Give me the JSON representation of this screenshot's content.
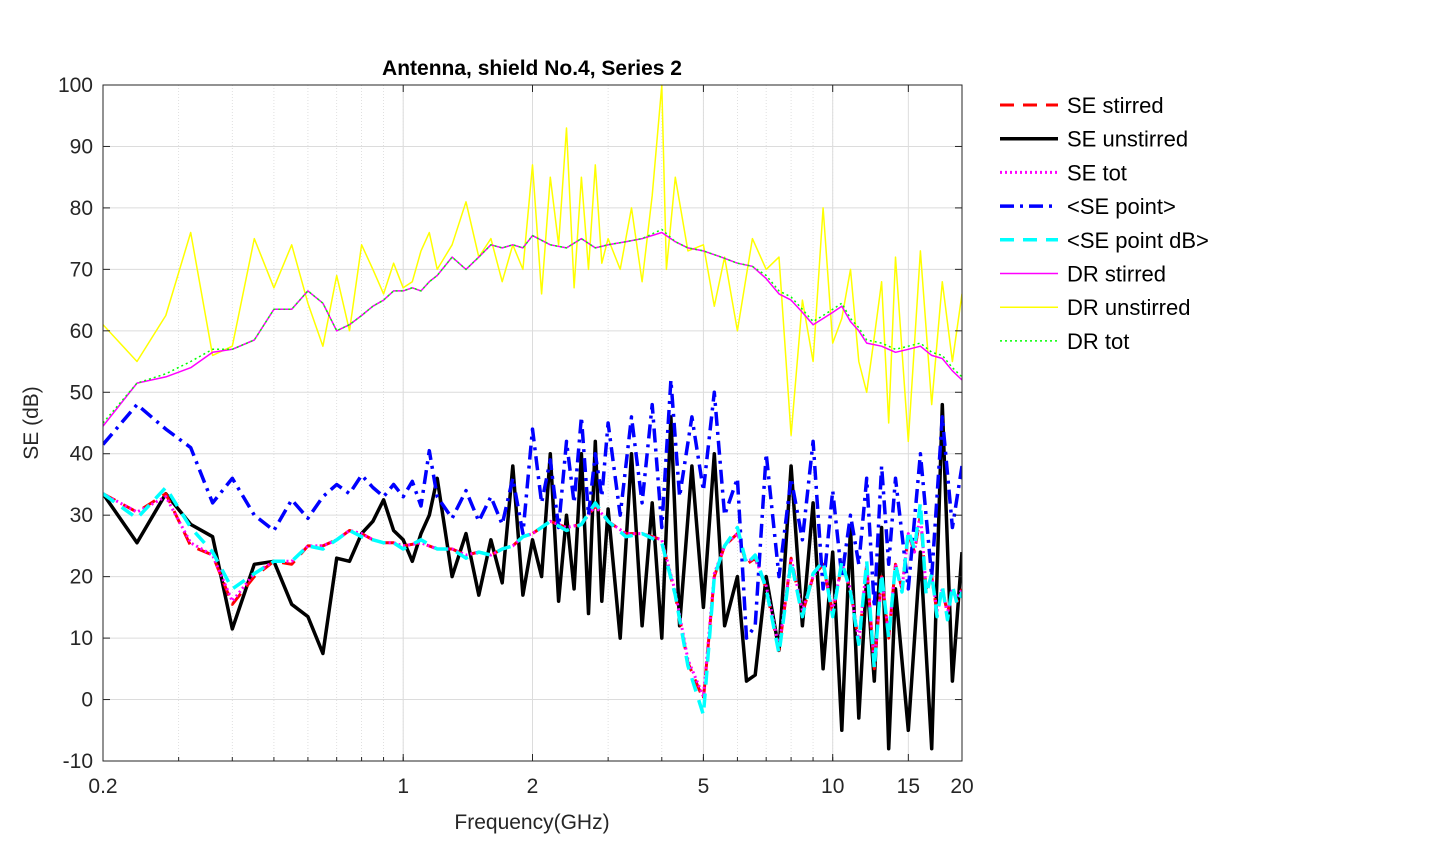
{
  "chart_data": {
    "type": "line",
    "title": "Antenna, shield No.4, Series 2",
    "xlabel": "Frequency(GHz)",
    "ylabel": "SE (dB)",
    "xscale": "log",
    "xlim": [
      0.2,
      20
    ],
    "ylim": [
      -10,
      100
    ],
    "xticks": [
      0.2,
      1,
      2,
      5,
      10,
      15,
      20
    ],
    "xtick_labels": [
      "0.2",
      "1",
      "2",
      "5",
      "10",
      "15",
      "20"
    ],
    "yticks": [
      -10,
      0,
      10,
      20,
      30,
      40,
      50,
      60,
      70,
      80,
      90,
      100
    ],
    "ytick_labels": [
      "-10",
      "0",
      "10",
      "20",
      "30",
      "40",
      "50",
      "60",
      "70",
      "80",
      "90",
      "100"
    ],
    "grid": true,
    "minor_grid_x": true,
    "legend_position": "outside-right",
    "series": [
      {
        "name": "DR unstirred",
        "color": "#FFFF00",
        "style": "solid",
        "width": 1.5,
        "x": [
          0.2,
          0.24,
          0.28,
          0.32,
          0.36,
          0.4,
          0.45,
          0.5,
          0.55,
          0.6,
          0.65,
          0.7,
          0.75,
          0.8,
          0.85,
          0.9,
          0.95,
          1.0,
          1.05,
          1.1,
          1.15,
          1.2,
          1.3,
          1.4,
          1.5,
          1.6,
          1.7,
          1.8,
          1.9,
          2.0,
          2.1,
          2.2,
          2.3,
          2.4,
          2.5,
          2.6,
          2.7,
          2.8,
          2.9,
          3.0,
          3.2,
          3.4,
          3.6,
          3.8,
          4.0,
          4.1,
          4.3,
          4.6,
          5.0,
          5.3,
          5.6,
          6.0,
          6.5,
          7.0,
          7.5,
          8.0,
          8.5,
          9.0,
          9.5,
          10.0,
          10.5,
          11.0,
          11.5,
          12.0,
          12.5,
          13.0,
          13.5,
          14.0,
          15.0,
          16.0,
          17.0,
          18.0,
          19.0,
          20.0
        ],
        "y": [
          61,
          55,
          62.5,
          76,
          56,
          57.5,
          75,
          67,
          74,
          64.5,
          57.5,
          69,
          60,
          74,
          70,
          66,
          71,
          67,
          68,
          73,
          76,
          70,
          74,
          81,
          72,
          75,
          68,
          74,
          70,
          87,
          66,
          85,
          74,
          93,
          67,
          85,
          70,
          87,
          71,
          75,
          70,
          80,
          68,
          82,
          100,
          70,
          85,
          73,
          74,
          64,
          72,
          60,
          75,
          70,
          72,
          43,
          65,
          55,
          80,
          58,
          62,
          70,
          55,
          50,
          59,
          68,
          45,
          72,
          42,
          73,
          48,
          68,
          55,
          66
        ]
      },
      {
        "name": "DR stirred",
        "color": "#FF00FF",
        "style": "solid",
        "width": 1.5,
        "x": [
          0.2,
          0.24,
          0.28,
          0.32,
          0.36,
          0.4,
          0.45,
          0.5,
          0.55,
          0.6,
          0.65,
          0.7,
          0.75,
          0.8,
          0.85,
          0.9,
          0.95,
          1.0,
          1.05,
          1.1,
          1.15,
          1.2,
          1.3,
          1.4,
          1.5,
          1.6,
          1.7,
          1.8,
          1.9,
          2.0,
          2.2,
          2.4,
          2.6,
          2.8,
          3.0,
          3.3,
          3.6,
          4.0,
          4.3,
          4.6,
          5.0,
          5.5,
          6.0,
          6.5,
          7.0,
          7.5,
          8.0,
          8.5,
          9.0,
          9.5,
          10.0,
          10.5,
          11.0,
          11.5,
          12.0,
          13.0,
          14.0,
          15.0,
          16.0,
          17.0,
          18.0,
          19.0,
          20.0
        ],
        "y": [
          44.5,
          51.5,
          52.5,
          54,
          56.5,
          57,
          58.5,
          63.5,
          63.5,
          66.5,
          64.5,
          60,
          61,
          62.5,
          64,
          65,
          66.5,
          66.5,
          67,
          66.5,
          68,
          69,
          72,
          70,
          72,
          74,
          73.5,
          74,
          73.5,
          75.5,
          74,
          73.5,
          75,
          73.5,
          74,
          74.5,
          75,
          76,
          74.5,
          73.5,
          73,
          72,
          71,
          70.5,
          68.5,
          66,
          65,
          63,
          61,
          62,
          63,
          64,
          61.5,
          60,
          58,
          57.5,
          56.5,
          57,
          57.5,
          56,
          55.5,
          53.5,
          52
        ]
      },
      {
        "name": "DR tot",
        "color": "#00FF00",
        "style": "dotted",
        "width": 1.5,
        "x": [
          0.2,
          0.24,
          0.28,
          0.32,
          0.36,
          0.4,
          0.45,
          0.5,
          0.55,
          0.6,
          0.65,
          0.7,
          0.75,
          0.8,
          0.85,
          0.9,
          0.95,
          1.0,
          1.05,
          1.1,
          1.15,
          1.2,
          1.3,
          1.4,
          1.5,
          1.6,
          1.7,
          1.8,
          1.9,
          2.0,
          2.2,
          2.4,
          2.6,
          2.8,
          3.0,
          3.3,
          3.6,
          4.0,
          4.3,
          4.6,
          5.0,
          5.5,
          6.0,
          6.5,
          7.0,
          7.5,
          8.0,
          8.5,
          9.0,
          9.5,
          10.0,
          10.5,
          11.0,
          11.5,
          12.0,
          13.0,
          14.0,
          15.0,
          16.0,
          17.0,
          18.0,
          19.0,
          20.0
        ],
        "y": [
          45,
          51.5,
          53,
          55,
          57,
          57,
          58.5,
          63.5,
          63.5,
          66.5,
          64.5,
          60,
          61,
          62.5,
          64,
          65,
          66.5,
          66.5,
          67,
          66.5,
          68,
          69,
          72,
          70,
          72,
          74,
          73.5,
          74,
          73.5,
          75.5,
          74,
          73.5,
          75,
          73.5,
          74,
          74.5,
          75,
          76.5,
          74.5,
          73.5,
          73,
          72,
          71,
          70.5,
          69,
          66.5,
          65.5,
          63.5,
          61.5,
          62.5,
          63.5,
          64.5,
          62,
          60.5,
          58.5,
          58,
          57,
          57.5,
          58,
          56.5,
          56,
          54,
          52.5
        ]
      },
      {
        "name": "SE unstirred",
        "color": "#000000",
        "style": "solid",
        "width": 3.5,
        "x": [
          0.2,
          0.24,
          0.28,
          0.32,
          0.36,
          0.4,
          0.45,
          0.5,
          0.55,
          0.6,
          0.65,
          0.7,
          0.75,
          0.8,
          0.85,
          0.9,
          0.95,
          1.0,
          1.05,
          1.1,
          1.15,
          1.2,
          1.3,
          1.4,
          1.5,
          1.6,
          1.7,
          1.8,
          1.9,
          2.0,
          2.1,
          2.2,
          2.3,
          2.4,
          2.5,
          2.6,
          2.7,
          2.8,
          2.9,
          3.0,
          3.2,
          3.4,
          3.6,
          3.8,
          4.0,
          4.2,
          4.4,
          4.7,
          5.0,
          5.3,
          5.6,
          6.0,
          6.3,
          6.6,
          7.0,
          7.5,
          8.0,
          8.5,
          9.0,
          9.5,
          10.0,
          10.5,
          11.0,
          11.5,
          12.0,
          12.5,
          13.0,
          13.5,
          14.0,
          15.0,
          16.0,
          17.0,
          18.0,
          19.0,
          20.0
        ],
        "y": [
          33.5,
          25.5,
          33.5,
          28.5,
          26.5,
          11.5,
          22,
          22.5,
          15.5,
          13.5,
          7.5,
          23,
          22.5,
          27,
          29,
          32.5,
          27.5,
          26,
          22.5,
          27,
          30,
          36,
          20,
          27,
          17,
          26,
          19,
          38,
          17,
          26,
          20,
          40,
          16,
          30,
          18,
          40,
          14,
          42,
          16,
          31,
          10,
          40,
          12,
          32,
          10,
          46,
          12,
          38,
          15,
          40,
          12,
          20,
          3,
          4,
          20,
          8,
          38,
          12,
          32,
          5,
          24,
          -5,
          28,
          -3,
          20,
          3,
          28,
          -8,
          18,
          -5,
          24,
          -8,
          48,
          3,
          24
        ]
      },
      {
        "name": "SE stirred",
        "color": "#FF0000",
        "style": "dashed",
        "width": 3,
        "x": [
          0.2,
          0.24,
          0.28,
          0.32,
          0.36,
          0.4,
          0.45,
          0.5,
          0.55,
          0.6,
          0.65,
          0.7,
          0.75,
          0.8,
          0.85,
          0.9,
          0.95,
          1.0,
          1.1,
          1.2,
          1.3,
          1.4,
          1.5,
          1.6,
          1.7,
          1.8,
          1.9,
          2.0,
          2.2,
          2.4,
          2.6,
          2.8,
          3.0,
          3.3,
          3.6,
          4.0,
          4.3,
          4.6,
          5.0,
          5.3,
          5.6,
          6.0,
          6.3,
          6.6,
          7.0,
          7.5,
          8.0,
          8.5,
          9.0,
          9.5,
          10.0,
          10.5,
          11.0,
          11.5,
          12.0,
          12.5,
          13.0,
          13.5,
          14.0,
          14.5,
          15.0,
          15.5,
          16.0,
          16.5,
          17.0,
          17.5,
          18.0,
          18.5,
          19.0,
          19.5,
          20.0
        ],
        "y": [
          33.5,
          30.5,
          33.5,
          25,
          23.5,
          15.5,
          20,
          22.5,
          22,
          25,
          25,
          26,
          27.5,
          27,
          26,
          25.5,
          25.5,
          25,
          25.5,
          24.5,
          24.5,
          23.5,
          24,
          23.5,
          24.5,
          25,
          26.5,
          27,
          29,
          28,
          28.5,
          31.5,
          29,
          27,
          27,
          26,
          17,
          6,
          0,
          20,
          25,
          27,
          22,
          23,
          18,
          8,
          23,
          14,
          20,
          22,
          14,
          22,
          18,
          9,
          22,
          5,
          20,
          10,
          22,
          18,
          27,
          24,
          30,
          18,
          20,
          14,
          18,
          14,
          18,
          16,
          18
        ]
      },
      {
        "name": "SE tot",
        "color": "#FF00FF",
        "style": "dotted",
        "width": 3,
        "x": [
          0.2,
          0.24,
          0.28,
          0.32,
          0.36,
          0.4,
          0.45,
          0.5,
          0.55,
          0.6,
          0.65,
          0.7,
          0.75,
          0.8,
          0.85,
          0.9,
          0.95,
          1.0,
          1.1,
          1.2,
          1.3,
          1.4,
          1.5,
          1.6,
          1.7,
          1.8,
          1.9,
          2.0,
          2.2,
          2.4,
          2.6,
          2.8,
          3.0,
          3.3,
          3.6,
          4.0,
          4.3,
          4.6,
          5.0,
          5.3,
          5.6,
          6.0,
          6.3,
          6.6,
          7.0,
          7.5,
          8.0,
          8.5,
          9.0,
          9.5,
          10.0,
          10.5,
          11.0,
          11.5,
          12.0,
          12.5,
          13.0,
          13.5,
          14.0,
          14.5,
          15.0,
          15.5,
          16.0,
          16.5,
          17.0,
          17.5,
          18.0,
          18.5,
          19.0,
          19.5,
          20.0
        ],
        "y": [
          33.5,
          30.5,
          33,
          25.5,
          23.5,
          16,
          20.5,
          22.5,
          22.5,
          25,
          25,
          26,
          27.5,
          27,
          26,
          25.5,
          25.5,
          25,
          25.5,
          24.5,
          24.5,
          23.5,
          24,
          23.5,
          24.5,
          25,
          26.5,
          27,
          29,
          28,
          28.5,
          31.5,
          29,
          27,
          27,
          26,
          17.5,
          6.5,
          0.5,
          20.5,
          25,
          27,
          22.5,
          23,
          18.5,
          8.5,
          23,
          14.5,
          20,
          22,
          14.5,
          22,
          18,
          9.5,
          22,
          5.5,
          20,
          10.5,
          22,
          18,
          27,
          24,
          30.5,
          18,
          20,
          14.5,
          18,
          14,
          18,
          16.5,
          18
        ]
      },
      {
        "name": "<SE point>",
        "color": "#0000FF",
        "style": "dashdot",
        "width": 3.5,
        "x": [
          0.2,
          0.24,
          0.28,
          0.32,
          0.36,
          0.4,
          0.45,
          0.5,
          0.55,
          0.6,
          0.65,
          0.7,
          0.75,
          0.8,
          0.85,
          0.9,
          0.95,
          1.0,
          1.05,
          1.1,
          1.15,
          1.2,
          1.3,
          1.4,
          1.5,
          1.6,
          1.7,
          1.8,
          1.9,
          2.0,
          2.1,
          2.2,
          2.3,
          2.4,
          2.5,
          2.6,
          2.7,
          2.8,
          2.9,
          3.0,
          3.2,
          3.4,
          3.6,
          3.8,
          4.0,
          4.2,
          4.4,
          4.7,
          5.0,
          5.3,
          5.6,
          6.0,
          6.3,
          6.6,
          7.0,
          7.5,
          8.0,
          8.5,
          9.0,
          9.5,
          10.0,
          10.5,
          11.0,
          11.5,
          12.0,
          12.5,
          13.0,
          13.5,
          14.0,
          15.0,
          16.0,
          17.0,
          18.0,
          19.0,
          20.0
        ],
        "y": [
          41.5,
          48,
          44,
          41,
          32,
          36,
          30,
          27.5,
          32.5,
          29.5,
          33,
          35,
          33.5,
          36.5,
          34.5,
          33,
          35,
          33,
          35.5,
          31.5,
          40.5,
          33,
          29.5,
          34,
          29,
          33,
          28.5,
          36,
          27,
          44,
          32,
          39,
          28,
          42,
          32,
          46,
          30,
          40,
          33,
          45,
          30,
          46,
          32,
          48,
          28,
          52,
          33,
          46,
          34,
          50,
          30,
          36,
          10,
          12,
          40,
          20,
          36,
          26,
          42,
          18,
          34,
          20,
          30,
          22,
          36,
          15,
          38,
          22,
          36,
          18,
          40,
          20,
          46,
          28,
          38
        ]
      },
      {
        "name": "<SE point dB>",
        "color": "#00FFFF",
        "style": "dashed",
        "width": 3.5,
        "x": [
          0.2,
          0.24,
          0.28,
          0.32,
          0.36,
          0.4,
          0.45,
          0.5,
          0.55,
          0.6,
          0.65,
          0.7,
          0.75,
          0.8,
          0.85,
          0.9,
          0.95,
          1.0,
          1.1,
          1.2,
          1.3,
          1.4,
          1.5,
          1.6,
          1.7,
          1.8,
          1.9,
          2.0,
          2.2,
          2.4,
          2.6,
          2.8,
          3.0,
          3.3,
          3.6,
          4.0,
          4.3,
          4.6,
          5.0,
          5.3,
          5.6,
          6.0,
          6.3,
          6.6,
          7.0,
          7.5,
          8.0,
          8.5,
          9.0,
          9.5,
          10.0,
          10.5,
          11.0,
          11.5,
          12.0,
          12.5,
          13.0,
          13.5,
          14.0,
          14.5,
          15.0,
          15.5,
          16.0,
          16.5,
          17.0,
          17.5,
          18.0,
          18.5,
          19.0,
          19.5,
          20.0
        ],
        "y": [
          33.5,
          29.5,
          34.5,
          28,
          24,
          18,
          20.5,
          22.5,
          22.5,
          25,
          24.5,
          26,
          27.5,
          26.5,
          26,
          25.5,
          25.5,
          24.5,
          26,
          24.5,
          24.5,
          23,
          24,
          23.5,
          24.5,
          25,
          26.5,
          27,
          29,
          27.5,
          28.5,
          32,
          29,
          26.5,
          27,
          25.5,
          17,
          5.5,
          -2.5,
          20,
          25,
          28,
          22,
          23.5,
          18,
          7.5,
          22.5,
          13.5,
          20.5,
          22.5,
          13.5,
          22.5,
          17.5,
          9,
          22.5,
          5,
          20.5,
          10,
          22,
          17.5,
          27.5,
          24.5,
          32,
          17,
          20.5,
          13.5,
          18.5,
          13,
          18.5,
          15.5,
          17.5
        ]
      }
    ]
  }
}
